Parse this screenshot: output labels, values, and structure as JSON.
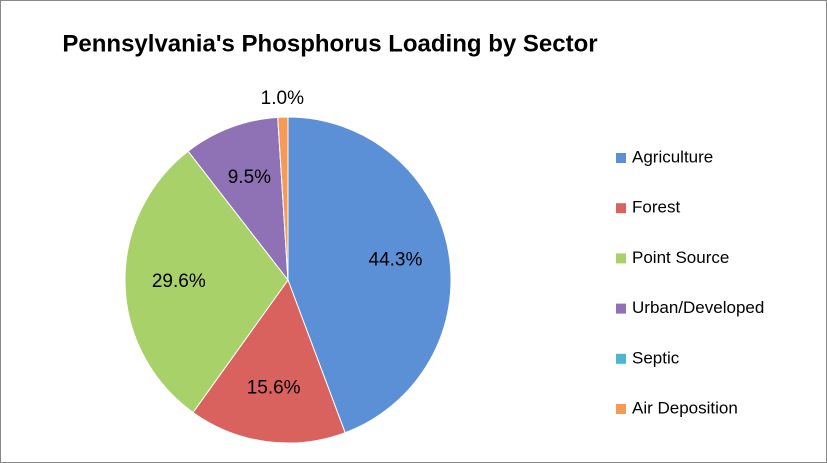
{
  "chart_data": {
    "type": "pie",
    "title": "Pennsylvania's Phosphorus Loading by Sector",
    "categories": [
      "Agriculture",
      "Forest",
      "Point Source",
      "Urban/Developed",
      "Septic",
      "Air Deposition"
    ],
    "values": [
      44.3,
      15.6,
      29.6,
      9.5,
      0,
      1.0
    ],
    "value_labels": [
      "44.3%",
      "15.6%",
      "29.6%",
      "9.5%",
      null,
      "1.0%"
    ],
    "colors": [
      "#5b8fd6",
      "#d9625e",
      "#a9d16a",
      "#8f72b5",
      "#4fb6d1",
      "#f79a55"
    ],
    "legend": "right"
  }
}
